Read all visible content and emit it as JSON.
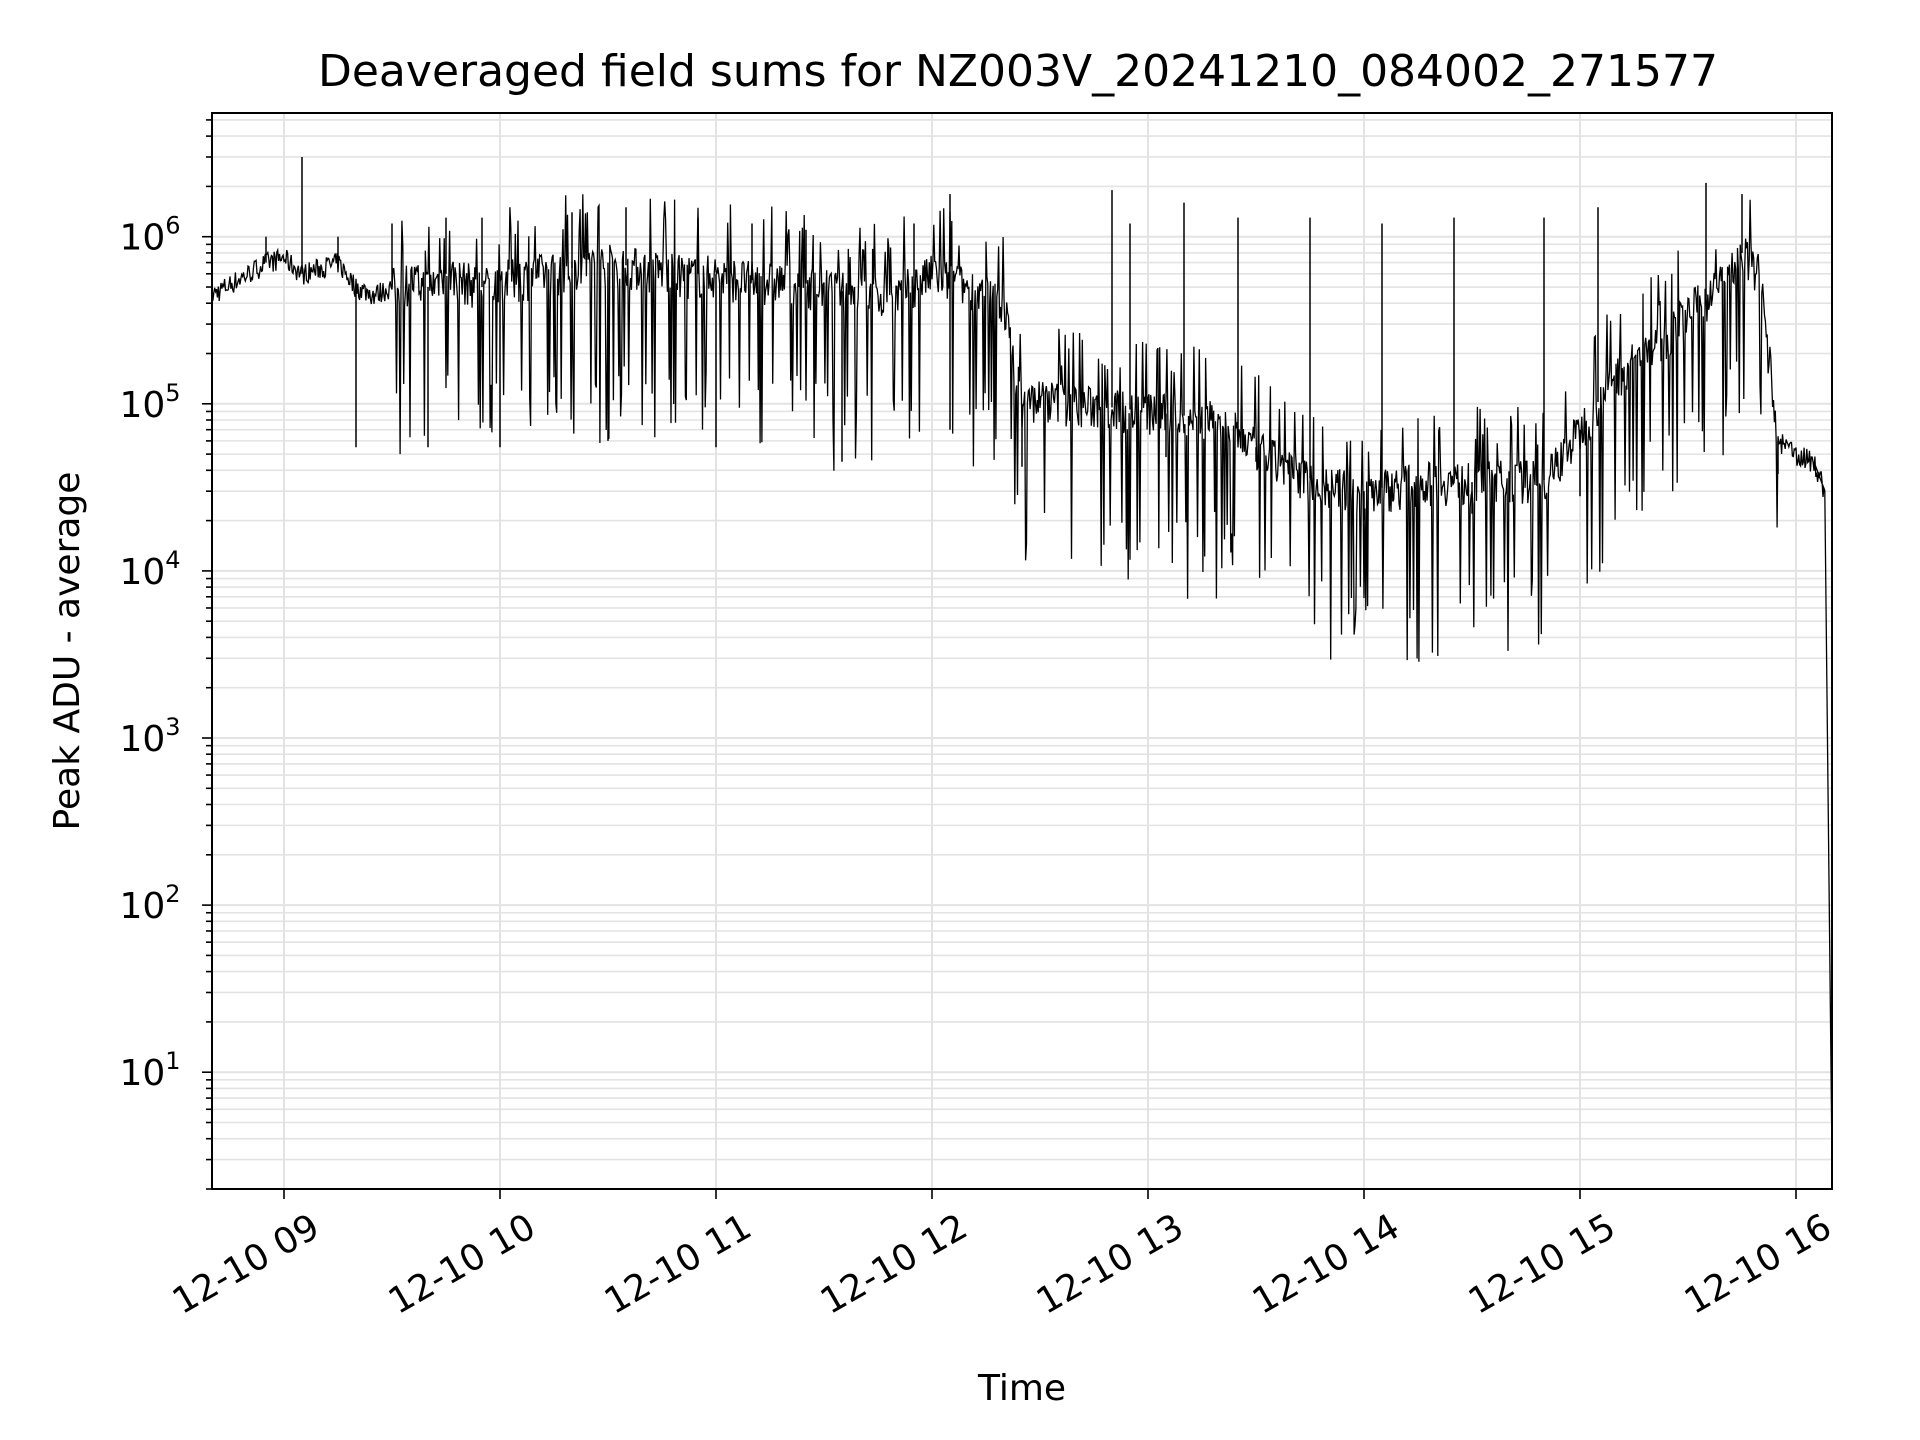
{
  "chart_data": {
    "type": "line",
    "title": "Deaveraged field sums for NZ003V_20241210_084002_271577",
    "xlabel": "Time",
    "ylabel": "Peak ADU - average",
    "yscale": "log",
    "ylim": [
      2,
      5500000
    ],
    "xlim": [
      "12-10 08:40",
      "12-10 16:10"
    ],
    "grid": true,
    "line_color": "#000000",
    "grid_color": "#e3e3e3",
    "x_ticks": [
      {
        "value": "12-10 09:00",
        "label": "12-10 09"
      },
      {
        "value": "12-10 10:00",
        "label": "12-10 10"
      },
      {
        "value": "12-10 11:00",
        "label": "12-10 11"
      },
      {
        "value": "12-10 12:00",
        "label": "12-10 12"
      },
      {
        "value": "12-10 13:00",
        "label": "12-10 13"
      },
      {
        "value": "12-10 14:00",
        "label": "12-10 14"
      },
      {
        "value": "12-10 15:00",
        "label": "12-10 15"
      },
      {
        "value": "12-10 16:00",
        "label": "12-10 16"
      }
    ],
    "y_ticks": [
      {
        "value": 10,
        "base": "10",
        "exp": "1"
      },
      {
        "value": 100,
        "base": "10",
        "exp": "2"
      },
      {
        "value": 1000,
        "base": "10",
        "exp": "3"
      },
      {
        "value": 10000,
        "base": "10",
        "exp": "4"
      },
      {
        "value": 100000,
        "base": "10",
        "exp": "5"
      },
      {
        "value": 1000000,
        "base": "10",
        "exp": "6"
      }
    ],
    "series": [
      {
        "x": [
          "12-10 08:40",
          "12-10 08:45",
          "12-10 08:50",
          "12-10 08:55",
          "12-10 09:00",
          "12-10 09:05",
          "12-10 09:10",
          "12-10 09:15",
          "12-10 09:20",
          "12-10 09:25",
          "12-10 09:30",
          "12-10 09:35",
          "12-10 09:40",
          "12-10 09:45",
          "12-10 09:50",
          "12-10 09:55",
          "12-10 10:00",
          "12-10 10:10",
          "12-10 10:20",
          "12-10 10:30",
          "12-10 10:40",
          "12-10 10:50",
          "12-10 11:00",
          "12-10 11:10",
          "12-10 11:20",
          "12-10 11:30",
          "12-10 11:40",
          "12-10 11:50",
          "12-10 12:00",
          "12-10 12:10",
          "12-10 12:20",
          "12-10 12:25",
          "12-10 12:30",
          "12-10 12:40",
          "12-10 12:50",
          "12-10 13:00",
          "12-10 13:10",
          "12-10 13:20",
          "12-10 13:30",
          "12-10 13:40",
          "12-10 13:50",
          "12-10 14:00",
          "12-10 14:10",
          "12-10 14:20",
          "12-10 14:30",
          "12-10 14:40",
          "12-10 14:50",
          "12-10 15:00",
          "12-10 15:10",
          "12-10 15:20",
          "12-10 15:30",
          "12-10 15:40",
          "12-10 15:45",
          "12-10 15:50",
          "12-10 15:55",
          "12-10 16:00",
          "12-10 16:05",
          "12-10 16:08",
          "12-10 16:10"
        ],
        "y": [
          450000,
          520000,
          600000,
          700000,
          750000,
          600000,
          650000,
          700000,
          500000,
          450000,
          500000,
          550000,
          500000,
          600000,
          550000,
          500000,
          550000,
          600000,
          650000,
          700000,
          650000,
          600000,
          600000,
          550000,
          550000,
          500000,
          450000,
          450000,
          600000,
          500000,
          400000,
          100000,
          110000,
          100000,
          95000,
          90000,
          85000,
          80000,
          55000,
          40000,
          32000,
          30000,
          33000,
          35000,
          34000,
          36000,
          35000,
          70000,
          150000,
          220000,
          350000,
          550000,
          800000,
          600000,
          60000,
          50000,
          45000,
          30000,
          3
        ]
      }
    ],
    "peaks": {
      "x": [
        "12-10 08:55",
        "12-10 09:05",
        "12-10 09:15",
        "12-10 09:30",
        "12-10 09:45",
        "12-10 09:55",
        "12-10 10:20",
        "12-10 10:35",
        "12-10 10:55",
        "12-10 11:10",
        "12-10 11:25",
        "12-10 11:55",
        "12-10 12:05",
        "12-10 12:50",
        "12-10 12:55",
        "12-10 13:10",
        "12-10 13:25",
        "12-10 13:45",
        "12-10 14:05",
        "12-10 14:25",
        "12-10 14:50",
        "12-10 15:05",
        "12-10 15:35",
        "12-10 15:45"
      ],
      "y": [
        1000000,
        3000000,
        1000000,
        1200000,
        1300000,
        1300000,
        1400000,
        1500000,
        1300000,
        1200000,
        1100000,
        1200000,
        1800000,
        1900000,
        1200000,
        1600000,
        1300000,
        1300000,
        1200000,
        1300000,
        1300000,
        1500000,
        2100000,
        1800000
      ]
    },
    "troughs": {
      "x": [
        "12-10 09:20",
        "12-10 09:40",
        "12-10 10:00",
        "12-10 10:30",
        "12-10 11:00",
        "12-10 11:35",
        "12-10 12:05",
        "12-10 12:25",
        "12-10 13:05",
        "12-10 13:30",
        "12-10 14:00",
        "12-10 14:30",
        "12-10 15:00",
        "12-10 15:55"
      ],
      "y": [
        55000,
        55000,
        55000,
        60000,
        55000,
        45000,
        70000,
        42000,
        48000,
        45000,
        20000,
        22000,
        28000,
        38000
      ]
    }
  }
}
